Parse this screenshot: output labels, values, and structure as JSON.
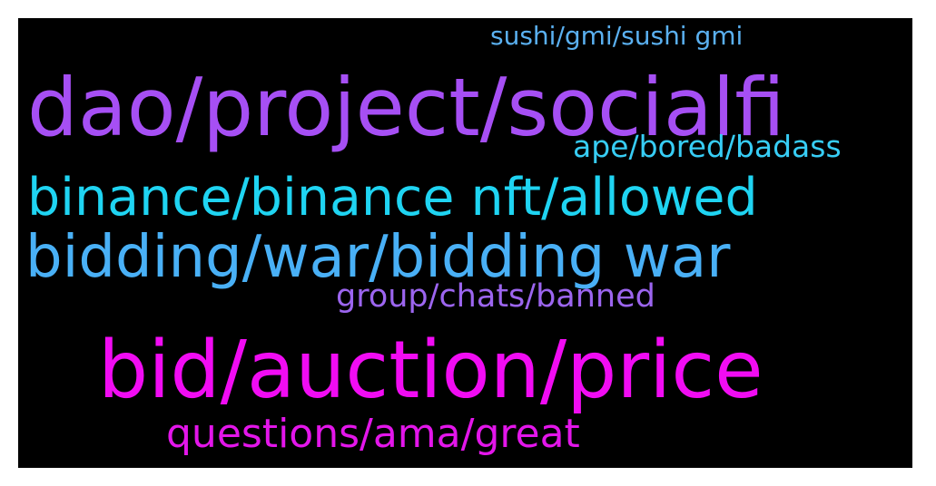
{
  "wordcloud": {
    "background_color": "#000000",
    "words": [
      {
        "text": "sushi/gmi/sushi gmi",
        "color": "#5ab0f0"
      },
      {
        "text": "dao/project/socialfi",
        "color": "#a64ff4"
      },
      {
        "text": "ape/bored/badass",
        "color": "#37cdf5"
      },
      {
        "text": "binance/binance nft/allowed",
        "color": "#1fd4f2"
      },
      {
        "text": "bidding/war/bidding war",
        "color": "#49b0f6"
      },
      {
        "text": "group/chats/banned",
        "color": "#9c65ef"
      },
      {
        "text": "bid/auction/price",
        "color": "#f10cf3"
      },
      {
        "text": "questions/ama/great",
        "color": "#e316ea"
      }
    ]
  }
}
